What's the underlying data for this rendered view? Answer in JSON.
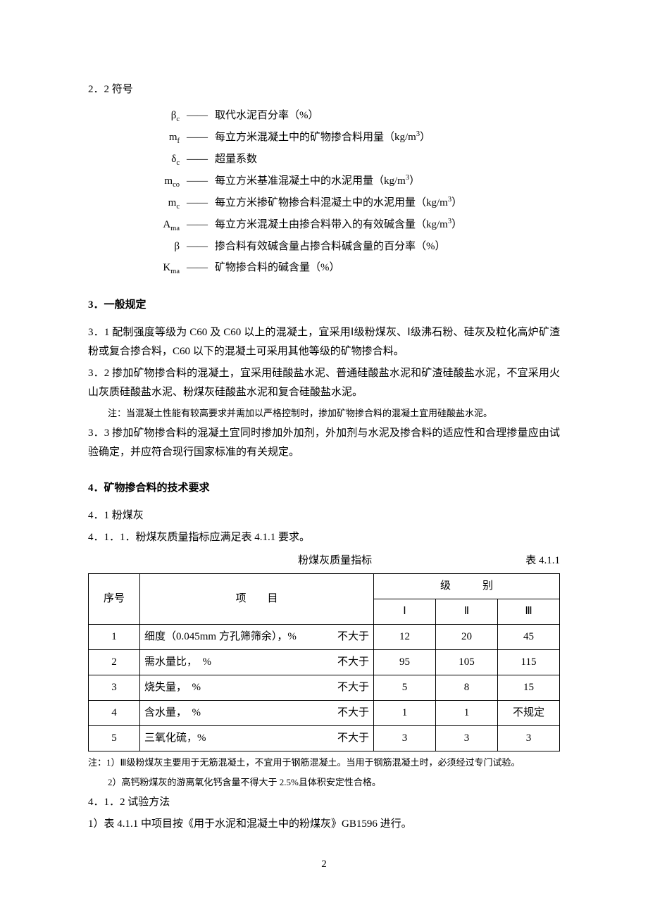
{
  "section22": {
    "title": "2．2 符号",
    "dash": "——",
    "symbols": [
      {
        "sym_html": "β<sub>c</sub>",
        "desc": "取代水泥百分率（%）"
      },
      {
        "sym_html": "m<sub>f</sub>",
        "desc_html": "每立方米混凝土中的矿物掺合料用量（kg/m<sup>3</sup>）"
      },
      {
        "sym_html": "δ<sub>c</sub>",
        "desc": "超量系数"
      },
      {
        "sym_html": "m<sub>co</sub>",
        "desc_html": "每立方米基准混凝土中的水泥用量（kg/m<sup>3</sup>）"
      },
      {
        "sym_html": "m<sub>c</sub>",
        "desc_html": "每立方米掺矿物掺合料混凝土中的水泥用量（kg/m<sup>3</sup>）"
      },
      {
        "sym_html": "A<sub>ma</sub>",
        "desc_html": "每立方米混凝土由掺合料带入的有效碱含量（kg/m<sup>3</sup>）"
      },
      {
        "sym_html": "β",
        "desc": "掺合料有效碱含量占掺合料碱含量的百分率（%）"
      },
      {
        "sym_html": "K<sub>ma</sub>",
        "desc": "矿物掺合料的碱含量（%）"
      }
    ]
  },
  "section3": {
    "title": "3．一般规定",
    "p31": "3．1 配制强度等级为 C60 及 C60 以上的混凝土，宜采用Ⅰ级粉煤灰、Ⅰ级沸石粉、硅灰及粒化高炉矿渣粉或复合掺合料，C60 以下的混凝土可采用其他等级的矿物掺合料。",
    "p32": "3．2 掺加矿物掺合料的混凝土，宜采用硅酸盐水泥、普通硅酸盐水泥和矿渣硅酸盐水泥，不宜采用火山灰质硅酸盐水泥、粉煤灰硅酸盐水泥和复合硅酸盐水泥。",
    "note": "注：当混凝土性能有较高要求并需加以严格控制时，掺加矿物掺合料的混凝土宜用硅酸盐水泥。",
    "p33": "3．3 掺加矿物掺合料的混凝土宜同时掺加外加剂，外加剂与水泥及掺合料的适应性和合理掺量应由试验确定，并应符合现行国家标准的有关规定。"
  },
  "section4": {
    "title": "4．矿物掺合料的技术要求",
    "sub41": "4．1 粉煤灰",
    "p411": "4．1．1．粉煤灰质量指标应满足表 4.1.1 要求。",
    "table_caption": "粉煤灰质量指标",
    "table_ref": "表 4.1.1",
    "header": {
      "seq": "序号",
      "item": "项　　目",
      "grade": "级　　　别",
      "g1": "Ⅰ",
      "g2": "Ⅱ",
      "g3": "Ⅲ"
    },
    "rows": [
      {
        "n": "1",
        "item": "细度（0.045mm 方孔筛筛余），%",
        "cond": "不大于",
        "v1": "12",
        "v2": "20",
        "v3": "45"
      },
      {
        "n": "2",
        "item": "需水量比，　%",
        "cond": "不大于",
        "v1": "95",
        "v2": "105",
        "v3": "115"
      },
      {
        "n": "3",
        "item": "烧失量，　%",
        "cond": "不大于",
        "v1": "5",
        "v2": "8",
        "v3": "15"
      },
      {
        "n": "4",
        "item": "含水量，　%",
        "cond": "不大于",
        "v1": "1",
        "v2": "1",
        "v3": "不规定"
      },
      {
        "n": "5",
        "item": "三氧化硫，%",
        "cond": "不大于",
        "v1": "3",
        "v2": "3",
        "v3": "3"
      }
    ],
    "note1": "注：1）Ⅲ级粉煤灰主要用于无筋混凝土，不宜用于钢筋混凝土。当用于钢筋混凝土时，必须经过专门试验。",
    "note2": "2）高钙粉煤灰的游离氧化钙含量不得大于 2.5%且体积安定性合格。",
    "p412": "4．1．2 试验方法",
    "p412_1": "1）表 4.1.1 中项目按《用于水泥和混凝土中的粉煤灰》GB1596 进行。"
  },
  "page": "2"
}
